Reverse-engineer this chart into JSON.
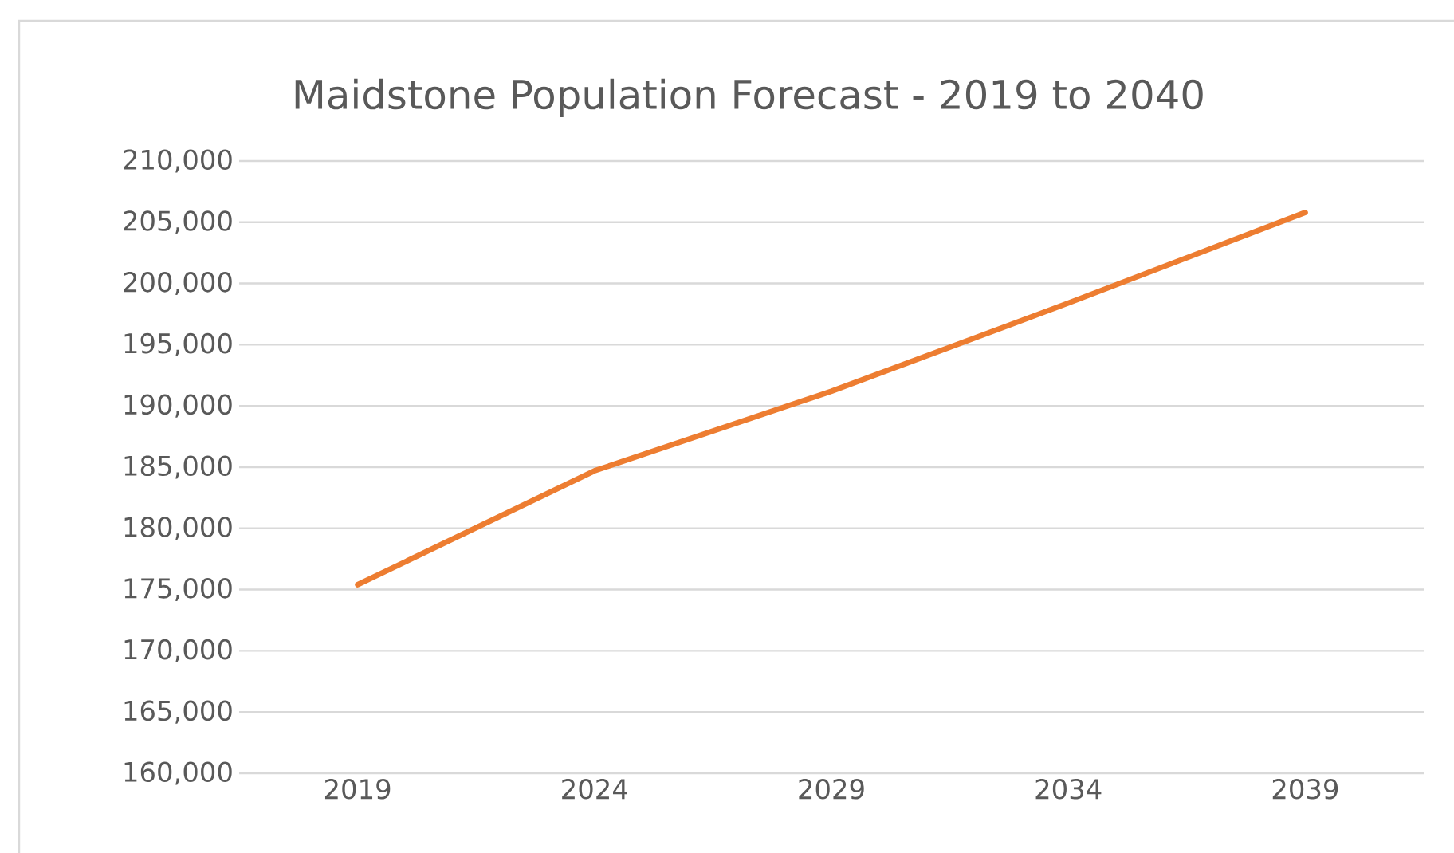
{
  "chart_data": {
    "type": "line",
    "title": "Maidstone Population Forecast - 2019 to 2040",
    "categories": [
      "2019",
      "2024",
      "2029",
      "2034",
      "2039"
    ],
    "series": [
      {
        "color": "#ed7d31",
        "values": [
          175400,
          184700,
          191200,
          198400,
          205800
        ]
      }
    ],
    "ylim": [
      160000,
      210000
    ],
    "yticks": [
      {
        "value": 160000,
        "label": "160,000"
      },
      {
        "value": 165000,
        "label": "165,000"
      },
      {
        "value": 170000,
        "label": "170,000"
      },
      {
        "value": 175000,
        "label": "175,000"
      },
      {
        "value": 180000,
        "label": "180,000"
      },
      {
        "value": 185000,
        "label": "185,000"
      },
      {
        "value": 190000,
        "label": "190,000"
      },
      {
        "value": 195000,
        "label": "195,000"
      },
      {
        "value": 200000,
        "label": "200,000"
      },
      {
        "value": 205000,
        "label": "205,000"
      },
      {
        "value": 210000,
        "label": "210,000"
      }
    ],
    "grid": "y",
    "legend": false,
    "marker": "none",
    "line_style": "solid"
  }
}
